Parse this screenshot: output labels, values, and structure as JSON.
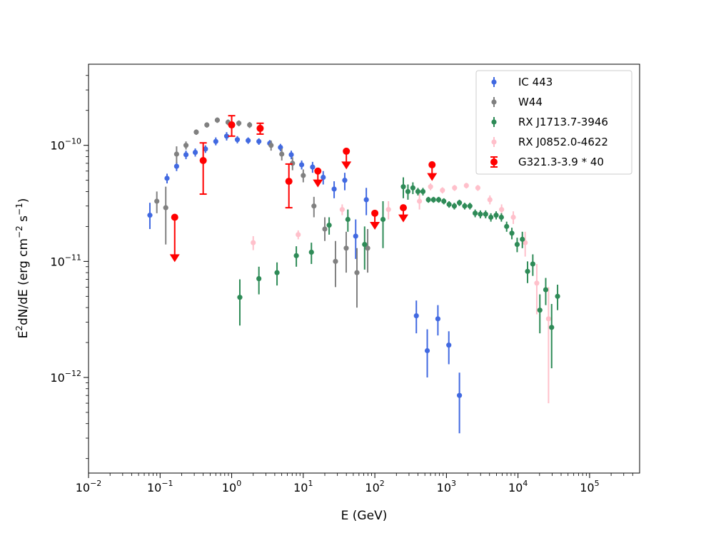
{
  "chart_data": {
    "type": "scatter",
    "xscale": "log",
    "yscale": "log",
    "xlim": [
      0.01,
      500000
    ],
    "ylim": [
      1.5e-13,
      5e-10
    ],
    "xlabel": "E (GeV)",
    "ylabel_base": "E",
    "ylabel_sup": "2",
    "ylabel_rest": "dN/dE (erg cm",
    "ylabel_sup2": "−2",
    "ylabel_rest2": " s",
    "ylabel_sup3": "−1",
    "ylabel_end": ")",
    "x_ticks": [
      {
        "value": 0.01,
        "base": "10",
        "exp": "−2"
      },
      {
        "value": 0.1,
        "base": "10",
        "exp": "−1"
      },
      {
        "value": 1,
        "base": "10",
        "exp": "0"
      },
      {
        "value": 10,
        "base": "10",
        "exp": "1"
      },
      {
        "value": 100,
        "base": "10",
        "exp": "2"
      },
      {
        "value": 1000,
        "base": "10",
        "exp": "3"
      },
      {
        "value": 10000,
        "base": "10",
        "exp": "4"
      },
      {
        "value": 100000,
        "base": "10",
        "exp": "5"
      }
    ],
    "y_ticks": [
      {
        "value": 1e-12,
        "base": "10",
        "exp": "−12"
      },
      {
        "value": 1e-11,
        "base": "10",
        "exp": "−11"
      },
      {
        "value": 1e-10,
        "base": "10",
        "exp": "−10"
      }
    ],
    "legend_position": "top-right",
    "series": [
      {
        "name": "IC 443",
        "color": "#4169e1",
        "points": [
          {
            "x": 0.072,
            "y": 2.5e-11,
            "lo": 1.9e-11,
            "hi": 3.2e-11
          },
          {
            "x": 0.125,
            "y": 5.2e-11,
            "lo": 4.7e-11,
            "hi": 5.7e-11
          },
          {
            "x": 0.17,
            "y": 6.6e-11,
            "lo": 6e-11,
            "hi": 7.2e-11
          },
          {
            "x": 0.23,
            "y": 8.3e-11,
            "lo": 7.6e-11,
            "hi": 9e-11
          },
          {
            "x": 0.31,
            "y": 8.7e-11,
            "lo": 8e-11,
            "hi": 9.4e-11
          },
          {
            "x": 0.43,
            "y": 9.3e-11,
            "lo": 8.6e-11,
            "hi": 1e-10
          },
          {
            "x": 0.6,
            "y": 1.08e-10,
            "lo": 1e-10,
            "hi": 1.17e-10
          },
          {
            "x": 0.85,
            "y": 1.2e-10,
            "lo": 1.1e-10,
            "hi": 1.3e-10
          },
          {
            "x": 1.2,
            "y": 1.12e-10,
            "lo": 1.04e-10,
            "hi": 1.2e-10
          },
          {
            "x": 1.7,
            "y": 1.1e-10,
            "lo": 1.03e-10,
            "hi": 1.17e-10
          },
          {
            "x": 2.4,
            "y": 1.08e-10,
            "lo": 1.01e-10,
            "hi": 1.15e-10
          },
          {
            "x": 3.4,
            "y": 1.04e-10,
            "lo": 9.7e-11,
            "hi": 1.11e-10
          },
          {
            "x": 4.8,
            "y": 9.6e-11,
            "lo": 8.9e-11,
            "hi": 1.03e-10
          },
          {
            "x": 6.8,
            "y": 8.3e-11,
            "lo": 7.6e-11,
            "hi": 9e-11
          },
          {
            "x": 9.5,
            "y": 6.8e-11,
            "lo": 6.2e-11,
            "hi": 7.4e-11
          },
          {
            "x": 13.5,
            "y": 6.5e-11,
            "lo": 5.8e-11,
            "hi": 7.2e-11
          },
          {
            "x": 19,
            "y": 5.3e-11,
            "lo": 4.6e-11,
            "hi": 6e-11
          },
          {
            "x": 27,
            "y": 4.2e-11,
            "lo": 3.5e-11,
            "hi": 4.9e-11
          },
          {
            "x": 38,
            "y": 5e-11,
            "lo": 4.1e-11,
            "hi": 5.8e-11
          },
          {
            "x": 54,
            "y": 1.65e-11,
            "lo": 1.05e-11,
            "hi": 2.3e-11
          },
          {
            "x": 76,
            "y": 3.4e-11,
            "lo": 2.5e-11,
            "hi": 4.3e-11
          },
          {
            "x": 380,
            "y": 3.4e-12,
            "lo": 2.4e-12,
            "hi": 4.6e-12
          },
          {
            "x": 540,
            "y": 1.7e-12,
            "lo": 1e-12,
            "hi": 2.6e-12
          },
          {
            "x": 760,
            "y": 3.2e-12,
            "lo": 2.3e-12,
            "hi": 4.2e-12
          },
          {
            "x": 1080,
            "y": 1.9e-12,
            "lo": 1.3e-12,
            "hi": 2.5e-12
          },
          {
            "x": 1520,
            "y": 7e-13,
            "lo": 3.3e-13,
            "hi": 1.1e-12
          }
        ]
      },
      {
        "name": "W44",
        "color": "#808080",
        "points": [
          {
            "x": 0.09,
            "y": 3.3e-11,
            "lo": 2.6e-11,
            "hi": 4e-11
          },
          {
            "x": 0.12,
            "y": 2.9e-11,
            "lo": 1.4e-11,
            "hi": 4.4e-11
          },
          {
            "x": 0.17,
            "y": 8.4e-11,
            "lo": 7e-11,
            "hi": 9.8e-11
          },
          {
            "x": 0.23,
            "y": 1e-10,
            "lo": 9.2e-11,
            "hi": 1.08e-10
          },
          {
            "x": 0.32,
            "y": 1.3e-10,
            "lo": 1.23e-10,
            "hi": 1.37e-10
          },
          {
            "x": 0.45,
            "y": 1.5e-10,
            "lo": 1.42e-10,
            "hi": 1.58e-10
          },
          {
            "x": 0.63,
            "y": 1.65e-10,
            "lo": 1.56e-10,
            "hi": 1.74e-10
          },
          {
            "x": 0.89,
            "y": 1.58e-10,
            "lo": 1.49e-10,
            "hi": 1.67e-10
          },
          {
            "x": 1.26,
            "y": 1.55e-10,
            "lo": 1.46e-10,
            "hi": 1.64e-10
          },
          {
            "x": 1.78,
            "y": 1.5e-10,
            "lo": 1.41e-10,
            "hi": 1.59e-10
          },
          {
            "x": 2.51,
            "y": 1.38e-10,
            "lo": 1.28e-10,
            "hi": 1.48e-10
          },
          {
            "x": 3.55,
            "y": 1e-10,
            "lo": 9e-11,
            "hi": 1.1e-10
          },
          {
            "x": 5.01,
            "y": 8.4e-11,
            "lo": 7.4e-11,
            "hi": 9.4e-11
          },
          {
            "x": 7.08,
            "y": 7e-11,
            "lo": 6.1e-11,
            "hi": 7.9e-11
          },
          {
            "x": 10.0,
            "y": 5.5e-11,
            "lo": 4.8e-11,
            "hi": 6.2e-11
          },
          {
            "x": 14.1,
            "y": 3e-11,
            "lo": 2.4e-11,
            "hi": 3.6e-11
          },
          {
            "x": 20.0,
            "y": 1.9e-11,
            "lo": 1.5e-11,
            "hi": 2.4e-11
          },
          {
            "x": 28.2,
            "y": 1e-11,
            "lo": 6e-12,
            "hi": 1.5e-11
          },
          {
            "x": 39.8,
            "y": 1.3e-11,
            "lo": 8e-12,
            "hi": 1.8e-11
          },
          {
            "x": 56.2,
            "y": 8e-12,
            "lo": 4e-12,
            "hi": 1.3e-11
          },
          {
            "x": 79.4,
            "y": 1.3e-11,
            "lo": 8e-12,
            "hi": 1.9e-11
          }
        ]
      },
      {
        "name": "RX J1713.7-3946",
        "color": "#2e8b57",
        "points": [
          {
            "x": 1.3,
            "y": 4.9e-12,
            "lo": 2.8e-12,
            "hi": 7e-12
          },
          {
            "x": 2.4,
            "y": 7.1e-12,
            "lo": 5.2e-12,
            "hi": 9e-12
          },
          {
            "x": 4.3,
            "y": 8e-12,
            "lo": 6.2e-12,
            "hi": 9.8e-12
          },
          {
            "x": 8.0,
            "y": 1.12e-11,
            "lo": 9e-12,
            "hi": 1.35e-11
          },
          {
            "x": 13.0,
            "y": 1.2e-11,
            "lo": 9.5e-12,
            "hi": 1.45e-11
          },
          {
            "x": 23.0,
            "y": 2.05e-11,
            "lo": 1.7e-11,
            "hi": 2.4e-11
          },
          {
            "x": 42.0,
            "y": 2.3e-11,
            "lo": 1.8e-11,
            "hi": 2.8e-11
          },
          {
            "x": 72.0,
            "y": 1.4e-11,
            "lo": 8.5e-12,
            "hi": 2e-11
          },
          {
            "x": 130.0,
            "y": 2.3e-11,
            "lo": 1.3e-11,
            "hi": 3.3e-11
          },
          {
            "x": 250.0,
            "y": 4.4e-11,
            "lo": 3.5e-11,
            "hi": 5.3e-11
          },
          {
            "x": 290.0,
            "y": 4e-11,
            "lo": 3.4e-11,
            "hi": 4.6e-11
          },
          {
            "x": 340.0,
            "y": 4.3e-11,
            "lo": 3.8e-11,
            "hi": 4.8e-11
          },
          {
            "x": 400.0,
            "y": 4e-11,
            "lo": 3.7e-11,
            "hi": 4.3e-11
          },
          {
            "x": 470.0,
            "y": 4e-11,
            "lo": 3.7e-11,
            "hi": 4.3e-11
          },
          {
            "x": 560.0,
            "y": 3.4e-11,
            "lo": 3.2e-11,
            "hi": 3.6e-11
          },
          {
            "x": 660.0,
            "y": 3.4e-11,
            "lo": 3.2e-11,
            "hi": 3.6e-11
          },
          {
            "x": 780.0,
            "y": 3.4e-11,
            "lo": 3.2e-11,
            "hi": 3.6e-11
          },
          {
            "x": 920.0,
            "y": 3.3e-11,
            "lo": 3.1e-11,
            "hi": 3.5e-11
          },
          {
            "x": 1090.0,
            "y": 3.1e-11,
            "lo": 2.9e-11,
            "hi": 3.3e-11
          },
          {
            "x": 1290.0,
            "y": 3e-11,
            "lo": 2.8e-11,
            "hi": 3.2e-11
          },
          {
            "x": 1520.0,
            "y": 3.2e-11,
            "lo": 3e-11,
            "hi": 3.4e-11
          },
          {
            "x": 1800.0,
            "y": 3e-11,
            "lo": 2.8e-11,
            "hi": 3.2e-11
          },
          {
            "x": 2130.0,
            "y": 3e-11,
            "lo": 2.8e-11,
            "hi": 3.2e-11
          },
          {
            "x": 2520.0,
            "y": 2.6e-11,
            "lo": 2.4e-11,
            "hi": 2.8e-11
          },
          {
            "x": 2980.0,
            "y": 2.55e-11,
            "lo": 2.35e-11,
            "hi": 2.75e-11
          },
          {
            "x": 3530.0,
            "y": 2.55e-11,
            "lo": 2.35e-11,
            "hi": 2.75e-11
          },
          {
            "x": 4180.0,
            "y": 2.4e-11,
            "lo": 2.2e-11,
            "hi": 2.6e-11
          },
          {
            "x": 4950.0,
            "y": 2.5e-11,
            "lo": 2.3e-11,
            "hi": 2.7e-11
          },
          {
            "x": 5860.0,
            "y": 2.4e-11,
            "lo": 2.2e-11,
            "hi": 2.6e-11
          },
          {
            "x": 6940.0,
            "y": 2e-11,
            "lo": 1.8e-11,
            "hi": 2.2e-11
          },
          {
            "x": 8210.0,
            "y": 1.75e-11,
            "lo": 1.55e-11,
            "hi": 1.95e-11
          },
          {
            "x": 9730.0,
            "y": 1.4e-11,
            "lo": 1.2e-11,
            "hi": 1.6e-11
          },
          {
            "x": 11500.0,
            "y": 1.55e-11,
            "lo": 1.3e-11,
            "hi": 1.8e-11
          },
          {
            "x": 13600.0,
            "y": 8.2e-12,
            "lo": 6.5e-12,
            "hi": 1e-11
          },
          {
            "x": 16100.0,
            "y": 9.5e-12,
            "lo": 7.5e-12,
            "hi": 1.15e-11
          },
          {
            "x": 20200.0,
            "y": 3.8e-12,
            "lo": 2.4e-12,
            "hi": 5.2e-12
          },
          {
            "x": 24400.0,
            "y": 5.7e-12,
            "lo": 4.2e-12,
            "hi": 7.2e-12
          },
          {
            "x": 29500.0,
            "y": 2.7e-12,
            "lo": 1.2e-12,
            "hi": 4.3e-12
          },
          {
            "x": 35700.0,
            "y": 5e-12,
            "lo": 3.8e-12,
            "hi": 6.3e-12
          }
        ]
      },
      {
        "name": "RX J0852.0-4622",
        "color": "#ffc0cb",
        "points": [
          {
            "x": 2.0,
            "y": 1.45e-11,
            "lo": 1.25e-11,
            "hi": 1.65e-11
          },
          {
            "x": 8.5,
            "y": 1.7e-11,
            "lo": 1.55e-11,
            "hi": 1.85e-11
          },
          {
            "x": 35.0,
            "y": 2.8e-11,
            "lo": 2.5e-11,
            "hi": 3.1e-11
          },
          {
            "x": 155.0,
            "y": 2.8e-11,
            "lo": 2.3e-11,
            "hi": 3.3e-11
          },
          {
            "x": 420.0,
            "y": 3.3e-11,
            "lo": 2.8e-11,
            "hi": 3.8e-11
          },
          {
            "x": 600.0,
            "y": 4.4e-11,
            "lo": 4.1e-11,
            "hi": 4.7e-11
          },
          {
            "x": 880.0,
            "y": 4.1e-11,
            "lo": 3.85e-11,
            "hi": 4.35e-11
          },
          {
            "x": 1300.0,
            "y": 4.3e-11,
            "lo": 4.05e-11,
            "hi": 4.55e-11
          },
          {
            "x": 1900.0,
            "y": 4.5e-11,
            "lo": 4.25e-11,
            "hi": 4.75e-11
          },
          {
            "x": 2750.0,
            "y": 4.3e-11,
            "lo": 4.05e-11,
            "hi": 4.55e-11
          },
          {
            "x": 4050.0,
            "y": 3.4e-11,
            "lo": 3.1e-11,
            "hi": 3.7e-11
          },
          {
            "x": 5900.0,
            "y": 2.8e-11,
            "lo": 2.5e-11,
            "hi": 3.1e-11
          },
          {
            "x": 8600.0,
            "y": 2.4e-11,
            "lo": 2.1e-11,
            "hi": 2.7e-11
          },
          {
            "x": 12600.0,
            "y": 1.45e-11,
            "lo": 1.1e-11,
            "hi": 1.8e-11
          },
          {
            "x": 18300.0,
            "y": 6.5e-12,
            "lo": 3.5e-12,
            "hi": 9.5e-12
          },
          {
            "x": 26700.0,
            "y": 3.2e-12,
            "lo": 6e-13,
            "hi": 6e-12
          }
        ]
      },
      {
        "name": "G321.3-3.9 * 40",
        "color": "#ff0000",
        "points": [
          {
            "x": 0.4,
            "y": 7.4e-11,
            "lo": 3.8e-11,
            "hi": 1.05e-10
          },
          {
            "x": 1.0,
            "y": 1.5e-10,
            "lo": 1.2e-10,
            "hi": 1.8e-10
          },
          {
            "x": 2.5,
            "y": 1.4e-10,
            "lo": 1.25e-10,
            "hi": 1.55e-10
          },
          {
            "x": 6.3,
            "y": 4.9e-11,
            "lo": 2.9e-11,
            "hi": 6.9e-11
          }
        ],
        "upper_limits": [
          {
            "x": 0.16,
            "y": 2.4e-11,
            "tip": 1e-11
          },
          {
            "x": 16.0,
            "y": 6e-11,
            "tip": 4.4e-11
          },
          {
            "x": 40.0,
            "y": 8.9e-11,
            "tip": 6.3e-11
          },
          {
            "x": 100.0,
            "y": 2.6e-11,
            "tip": 1.9e-11
          },
          {
            "x": 250.0,
            "y": 2.9e-11,
            "tip": 2.2e-11
          },
          {
            "x": 630.0,
            "y": 6.8e-11,
            "tip": 5e-11
          }
        ]
      }
    ]
  }
}
